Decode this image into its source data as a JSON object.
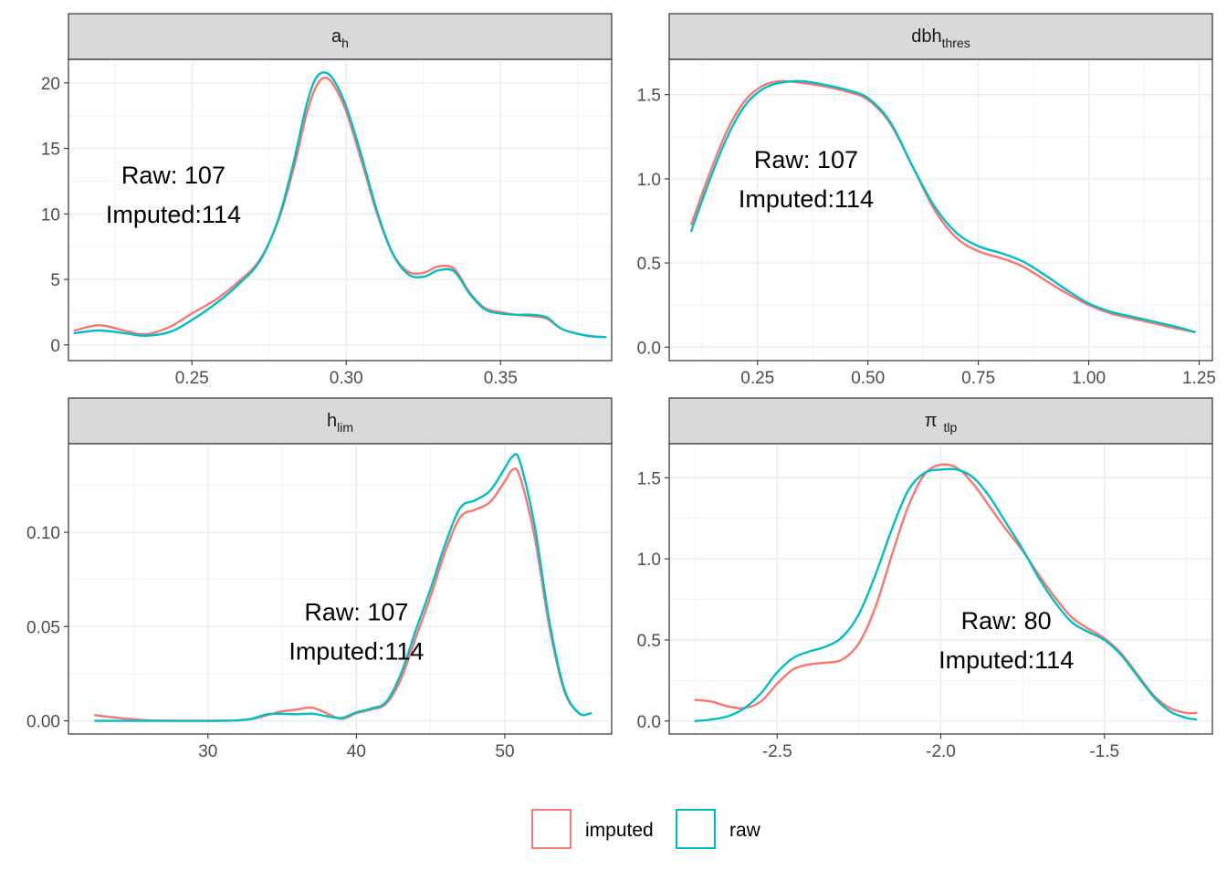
{
  "chart_data": [
    {
      "type": "line",
      "strip": {
        "main": "a",
        "sub": "h"
      },
      "xlim": [
        0.21,
        0.386
      ],
      "ylim": [
        -1.2,
        21.8
      ],
      "x_ticks": [
        {
          "v": 0.25,
          "label": "0.25"
        },
        {
          "v": 0.3,
          "label": "0.30"
        },
        {
          "v": 0.35,
          "label": "0.35"
        }
      ],
      "y_ticks": [
        {
          "v": 0,
          "label": "0"
        },
        {
          "v": 5,
          "label": "5"
        },
        {
          "v": 10,
          "label": "10"
        },
        {
          "v": 15,
          "label": "15"
        },
        {
          "v": 20,
          "label": "20"
        }
      ],
      "annotation": {
        "line1": "Raw: 107",
        "line2": "Imputed:114",
        "x": 0.244,
        "y": 11.5
      },
      "series": [
        {
          "name": "imputed",
          "x": [
            0.212,
            0.22,
            0.228,
            0.235,
            0.243,
            0.25,
            0.258,
            0.265,
            0.272,
            0.278,
            0.283,
            0.287,
            0.29,
            0.293,
            0.296,
            0.3,
            0.305,
            0.31,
            0.315,
            0.32,
            0.325,
            0.33,
            0.335,
            0.34,
            0.345,
            0.35,
            0.355,
            0.36,
            0.365,
            0.37,
            0.378,
            0.384
          ],
          "y": [
            1.1,
            1.5,
            1.1,
            0.8,
            1.4,
            2.4,
            3.5,
            4.8,
            6.5,
            9.5,
            13.5,
            17.5,
            19.6,
            20.4,
            19.8,
            17.8,
            14.0,
            10.0,
            7.0,
            5.6,
            5.5,
            6.0,
            5.8,
            4.0,
            2.8,
            2.5,
            2.3,
            2.2,
            2.0,
            1.2,
            0.7,
            0.6
          ]
        },
        {
          "name": "raw",
          "x": [
            0.212,
            0.22,
            0.228,
            0.235,
            0.243,
            0.25,
            0.258,
            0.265,
            0.272,
            0.278,
            0.283,
            0.287,
            0.29,
            0.293,
            0.296,
            0.3,
            0.305,
            0.31,
            0.315,
            0.32,
            0.325,
            0.33,
            0.335,
            0.34,
            0.345,
            0.35,
            0.355,
            0.36,
            0.365,
            0.37,
            0.378,
            0.384
          ],
          "y": [
            0.9,
            1.1,
            0.9,
            0.7,
            1.0,
            1.9,
            3.2,
            4.6,
            6.4,
            9.6,
            14.0,
            18.2,
            20.3,
            20.8,
            20.2,
            18.2,
            14.4,
            10.2,
            7.0,
            5.4,
            5.2,
            5.7,
            5.6,
            3.9,
            2.7,
            2.4,
            2.3,
            2.3,
            2.1,
            1.2,
            0.7,
            0.6
          ]
        }
      ]
    },
    {
      "type": "line",
      "strip": {
        "main": "dbh",
        "sub": "thres"
      },
      "xlim": [
        0.05,
        1.28
      ],
      "ylim": [
        -0.08,
        1.71
      ],
      "x_ticks": [
        {
          "v": 0.25,
          "label": "0.25"
        },
        {
          "v": 0.5,
          "label": "0.50"
        },
        {
          "v": 0.75,
          "label": "0.75"
        },
        {
          "v": 1.0,
          "label": "1.00"
        },
        {
          "v": 1.25,
          "label": "1.25"
        }
      ],
      "y_ticks": [
        {
          "v": 0.0,
          "label": "0.0"
        },
        {
          "v": 0.5,
          "label": "0.5"
        },
        {
          "v": 1.0,
          "label": "1.0"
        },
        {
          "v": 1.5,
          "label": "1.5"
        }
      ],
      "annotation": {
        "line1": "Raw: 107",
        "line2": "Imputed:114",
        "x": 0.36,
        "y": 1.0
      },
      "series": [
        {
          "name": "imputed",
          "x": [
            0.1,
            0.14,
            0.18,
            0.22,
            0.26,
            0.3,
            0.35,
            0.4,
            0.45,
            0.5,
            0.55,
            0.6,
            0.65,
            0.7,
            0.75,
            0.8,
            0.85,
            0.9,
            0.95,
            1.0,
            1.05,
            1.1,
            1.15,
            1.2,
            1.24
          ],
          "y": [
            0.73,
            1.02,
            1.28,
            1.46,
            1.55,
            1.58,
            1.57,
            1.55,
            1.52,
            1.47,
            1.33,
            1.08,
            0.82,
            0.65,
            0.57,
            0.53,
            0.48,
            0.4,
            0.32,
            0.25,
            0.2,
            0.17,
            0.14,
            0.11,
            0.09
          ]
        },
        {
          "name": "raw",
          "x": [
            0.1,
            0.14,
            0.18,
            0.22,
            0.26,
            0.3,
            0.35,
            0.4,
            0.45,
            0.5,
            0.55,
            0.6,
            0.65,
            0.7,
            0.75,
            0.8,
            0.85,
            0.9,
            0.95,
            1.0,
            1.05,
            1.1,
            1.15,
            1.2,
            1.24
          ],
          "y": [
            0.69,
            0.98,
            1.24,
            1.43,
            1.53,
            1.57,
            1.58,
            1.56,
            1.53,
            1.48,
            1.34,
            1.08,
            0.84,
            0.68,
            0.6,
            0.56,
            0.51,
            0.43,
            0.34,
            0.26,
            0.21,
            0.18,
            0.15,
            0.12,
            0.09
          ]
        }
      ]
    },
    {
      "type": "line",
      "strip": {
        "main": "h",
        "sub": "lim"
      },
      "xlim": [
        20.6,
        57.2
      ],
      "ylim": [
        -0.007,
        0.147
      ],
      "x_ticks": [
        {
          "v": 30,
          "label": "30"
        },
        {
          "v": 40,
          "label": "40"
        },
        {
          "v": 50,
          "label": "50"
        }
      ],
      "y_ticks": [
        {
          "v": 0.0,
          "label": "0.00"
        },
        {
          "v": 0.05,
          "label": "0.05"
        },
        {
          "v": 0.1,
          "label": "0.10"
        }
      ],
      "annotation": {
        "line1": "Raw: 107",
        "line2": "Imputed:114",
        "x": 40.0,
        "y": 0.0475
      },
      "series": [
        {
          "name": "imputed",
          "x": [
            22.4,
            24,
            26,
            28,
            30,
            32,
            33,
            34,
            35,
            36,
            37,
            38,
            39,
            40,
            41,
            42,
            43,
            44,
            45,
            46,
            47,
            48,
            49,
            50,
            50.5,
            51,
            52,
            53,
            54,
            55,
            55.8
          ],
          "y": [
            0.003,
            0.0015,
            0.0003,
            0.0,
            0.0,
            0.0002,
            0.001,
            0.003,
            0.005,
            0.006,
            0.007,
            0.004,
            0.001,
            0.004,
            0.006,
            0.009,
            0.022,
            0.044,
            0.066,
            0.09,
            0.108,
            0.112,
            0.116,
            0.127,
            0.133,
            0.13,
            0.098,
            0.05,
            0.016,
            0.004,
            0.004
          ]
        },
        {
          "name": "raw",
          "x": [
            22.4,
            24,
            26,
            28,
            30,
            32,
            33,
            34,
            35,
            36,
            37,
            38,
            39,
            40,
            41,
            42,
            43,
            44,
            45,
            46,
            47,
            48,
            49,
            50,
            50.5,
            51,
            52,
            53,
            54,
            55,
            55.8
          ],
          "y": [
            0.0,
            0.0,
            0.0,
            0.0,
            0.0,
            0.0002,
            0.0012,
            0.0035,
            0.0037,
            0.0035,
            0.0038,
            0.0025,
            0.0015,
            0.0045,
            0.0065,
            0.01,
            0.025,
            0.048,
            0.07,
            0.094,
            0.113,
            0.117,
            0.122,
            0.134,
            0.14,
            0.138,
            0.104,
            0.053,
            0.017,
            0.004,
            0.004
          ]
        }
      ]
    },
    {
      "type": "line",
      "strip": {
        "main": "π",
        "sub": "tlp"
      },
      "xlim": [
        -2.83,
        -1.17
      ],
      "ylim": [
        -0.08,
        1.71
      ],
      "x_ticks": [
        {
          "v": -2.5,
          "label": "-2.5"
        },
        {
          "v": -2.0,
          "label": "-2.0"
        },
        {
          "v": -1.5,
          "label": "-1.5"
        }
      ],
      "y_ticks": [
        {
          "v": 0.0,
          "label": "0.0"
        },
        {
          "v": 0.5,
          "label": "0.5"
        },
        {
          "v": 1.0,
          "label": "1.0"
        },
        {
          "v": 1.5,
          "label": "1.5"
        }
      ],
      "annotation": {
        "line1": "Raw: 80",
        "line2": "Imputed:114",
        "x": -1.8,
        "y": 0.5
      },
      "series": [
        {
          "name": "imputed",
          "x": [
            -2.75,
            -2.7,
            -2.65,
            -2.6,
            -2.55,
            -2.5,
            -2.45,
            -2.4,
            -2.35,
            -2.3,
            -2.25,
            -2.2,
            -2.15,
            -2.1,
            -2.05,
            -2.0,
            -1.95,
            -1.9,
            -1.85,
            -1.8,
            -1.75,
            -1.7,
            -1.65,
            -1.6,
            -1.55,
            -1.5,
            -1.45,
            -1.4,
            -1.35,
            -1.3,
            -1.25,
            -1.22
          ],
          "y": [
            0.13,
            0.12,
            0.09,
            0.08,
            0.12,
            0.23,
            0.32,
            0.35,
            0.36,
            0.38,
            0.48,
            0.7,
            1.02,
            1.32,
            1.52,
            1.58,
            1.56,
            1.46,
            1.32,
            1.18,
            1.05,
            0.9,
            0.76,
            0.64,
            0.57,
            0.51,
            0.42,
            0.29,
            0.16,
            0.08,
            0.05,
            0.05
          ]
        },
        {
          "name": "raw",
          "x": [
            -2.75,
            -2.7,
            -2.65,
            -2.6,
            -2.55,
            -2.5,
            -2.45,
            -2.4,
            -2.35,
            -2.3,
            -2.25,
            -2.2,
            -2.15,
            -2.1,
            -2.05,
            -2.0,
            -1.95,
            -1.9,
            -1.85,
            -1.8,
            -1.75,
            -1.7,
            -1.65,
            -1.6,
            -1.55,
            -1.5,
            -1.45,
            -1.4,
            -1.35,
            -1.3,
            -1.25,
            -1.22
          ],
          "y": [
            0.0,
            0.01,
            0.03,
            0.08,
            0.17,
            0.3,
            0.39,
            0.43,
            0.46,
            0.52,
            0.66,
            0.9,
            1.18,
            1.42,
            1.53,
            1.55,
            1.55,
            1.5,
            1.38,
            1.22,
            1.06,
            0.88,
            0.73,
            0.61,
            0.55,
            0.5,
            0.41,
            0.28,
            0.15,
            0.06,
            0.02,
            0.01
          ]
        }
      ]
    }
  ],
  "legend": {
    "items": [
      {
        "label": "imputed",
        "color": "#F8766D"
      },
      {
        "label": "raw",
        "color": "#00BFC4"
      }
    ]
  },
  "colors": {
    "imputed": "#F8766D",
    "raw": "#00BFC4"
  }
}
